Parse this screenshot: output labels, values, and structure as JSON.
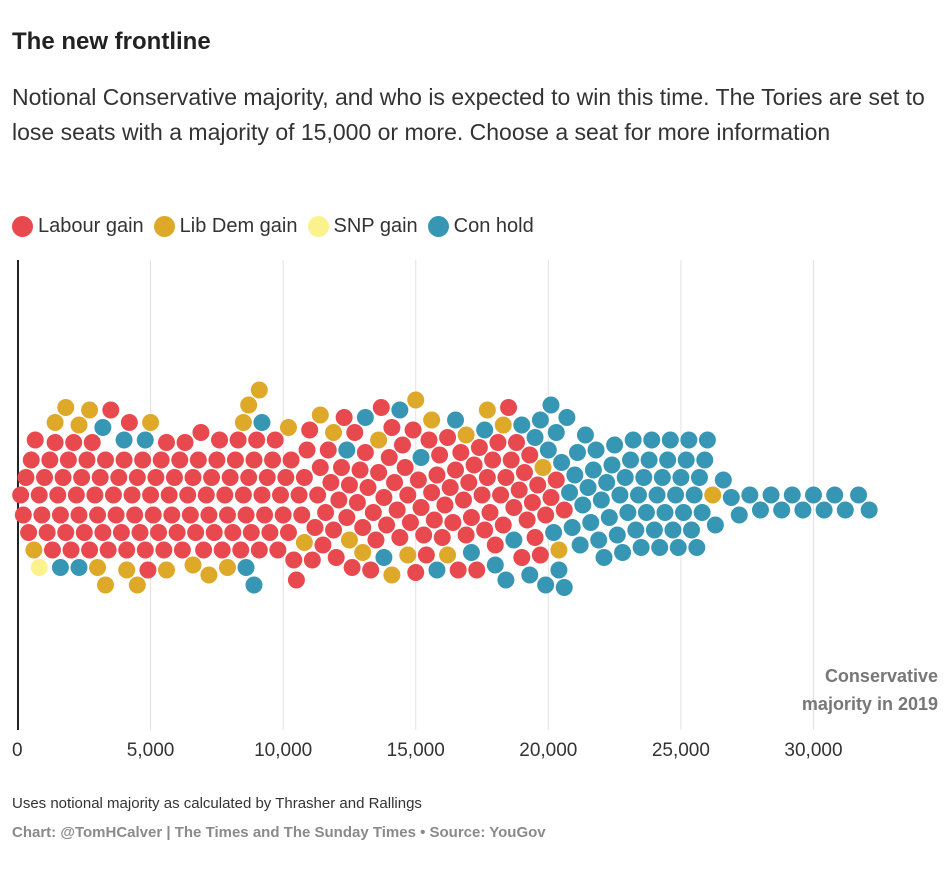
{
  "header": {
    "title": "The new frontline",
    "subtitle": "Notional Conservative majority, and who is expected to win this time. The Tories are set to lose seats with a majority of 15,000 or more. Choose a seat for more information"
  },
  "legend": [
    {
      "label": "Labour gain",
      "color": "#e8494f"
    },
    {
      "label": "Lib Dem gain",
      "color": "#dea829"
    },
    {
      "label": "SNP gain",
      "color": "#fcf28d"
    },
    {
      "label": "Con hold",
      "color": "#3896b5"
    }
  ],
  "footer": {
    "note": "Uses notional majority as calculated by Thrasher and Rallings",
    "credit": "Chart: @TomHCalver | The Times and The Sunday Times • Source: YouGov"
  },
  "chart_data": {
    "type": "scatter",
    "subtype": "beeswarm",
    "x_axis_title_lines": [
      "Conservative",
      "majority in 2019"
    ],
    "xlim": [
      0,
      32000
    ],
    "x_ticks": [
      0,
      5000,
      10000,
      15000,
      20000,
      25000,
      30000
    ],
    "x_tick_labels": [
      "0",
      "5,000",
      "10,000",
      "15,000",
      "20,000",
      "25,000",
      "30,000"
    ],
    "grid": "vertical",
    "legend_position": "top-left",
    "series": [
      {
        "name": "Labour gain",
        "color": "#e8494f",
        "x": [
          100,
          200,
          300,
          400,
          500,
          650,
          800,
          900,
          1000,
          1100,
          1200,
          1300,
          1400,
          1500,
          1600,
          1700,
          1800,
          1900,
          2000,
          2100,
          2200,
          2300,
          2400,
          2500,
          2600,
          2700,
          2800,
          2900,
          3000,
          3100,
          3200,
          3300,
          3400,
          3500,
          3600,
          3700,
          3800,
          3900,
          4000,
          4100,
          4200,
          4300,
          4400,
          4500,
          4600,
          4700,
          4800,
          4900,
          5000,
          5100,
          5200,
          5300,
          5400,
          5500,
          5600,
          5700,
          5800,
          5900,
          6000,
          6100,
          6200,
          6300,
          6400,
          6500,
          6600,
          6700,
          6800,
          6900,
          7000,
          7100,
          7200,
          7300,
          7400,
          7500,
          7600,
          7700,
          7800,
          7900,
          8000,
          8100,
          8200,
          8300,
          8400,
          8500,
          8600,
          8700,
          8800,
          8900,
          9000,
          9100,
          9200,
          9300,
          9400,
          9500,
          9600,
          9700,
          9800,
          9900,
          10000,
          10100,
          10200,
          10300,
          10400,
          10500,
          10600,
          10700,
          10800,
          10900,
          11000,
          11100,
          11200,
          11300,
          11400,
          11500,
          11600,
          11700,
          11800,
          11900,
          12000,
          12100,
          12200,
          12300,
          12400,
          12500,
          12600,
          12700,
          12800,
          12900,
          13000,
          13100,
          13200,
          13300,
          13400,
          13500,
          13600,
          13700,
          13800,
          13900,
          14000,
          14100,
          14200,
          14300,
          14400,
          14500,
          14600,
          14700,
          14800,
          14900,
          15000,
          15100,
          15200,
          15300,
          15400,
          15500,
          15600,
          15700,
          15800,
          15900,
          16000,
          16100,
          16200,
          16300,
          16400,
          16500,
          16600,
          16700,
          16800,
          16900,
          17000,
          17100,
          17200,
          17300,
          17400,
          17500,
          17600,
          17700,
          17800,
          17900,
          18000,
          18100,
          18200,
          18300,
          18400,
          18500,
          18600,
          18700,
          18800,
          18900,
          19000,
          19100,
          19200,
          19300,
          19400,
          19500,
          19600,
          19700,
          19900,
          20100,
          20300,
          20600
        ]
      },
      {
        "name": "Lib Dem gain",
        "color": "#dea829",
        "x": [
          600,
          1400,
          1800,
          2300,
          2700,
          3000,
          3300,
          4100,
          4500,
          5000,
          5600,
          6600,
          7200,
          7900,
          8500,
          8700,
          9100,
          10200,
          10800,
          11400,
          11900,
          12500,
          13000,
          13600,
          14100,
          14700,
          15000,
          15600,
          16200,
          16900,
          17700,
          18300,
          19800,
          20400,
          26200
        ]
      },
      {
        "name": "SNP gain",
        "color": "#fcf28d",
        "x": [
          800
        ]
      },
      {
        "name": "Con hold",
        "color": "#3896b5",
        "x": [
          1600,
          2300,
          3200,
          4000,
          4800,
          8600,
          8900,
          9200,
          12400,
          13100,
          13800,
          14400,
          15200,
          15800,
          16500,
          17100,
          17600,
          18000,
          18400,
          18700,
          19000,
          19300,
          19500,
          19700,
          19900,
          20000,
          20100,
          20200,
          20300,
          20400,
          20500,
          20600,
          20700,
          20800,
          20900,
          21000,
          21100,
          21200,
          21300,
          21400,
          21500,
          21600,
          21700,
          21800,
          21900,
          22000,
          22100,
          22200,
          22300,
          22400,
          22500,
          22600,
          22700,
          22800,
          22900,
          23000,
          23100,
          23200,
          23300,
          23400,
          23500,
          23600,
          23700,
          23800,
          23900,
          24000,
          24100,
          24200,
          24300,
          24400,
          24500,
          24600,
          24700,
          24800,
          24900,
          25000,
          25100,
          25200,
          25300,
          25400,
          25500,
          25600,
          25700,
          25800,
          25900,
          26000,
          26300,
          26600,
          26900,
          27200,
          27600,
          28000,
          28400,
          28800,
          29200,
          29600,
          30000,
          30400,
          30800,
          31200,
          31700,
          32100
        ]
      }
    ]
  }
}
